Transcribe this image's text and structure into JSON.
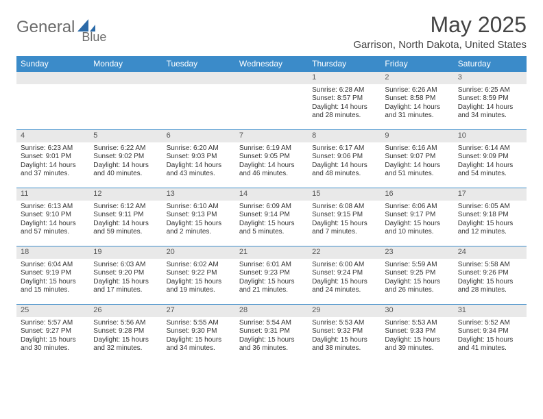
{
  "logo": {
    "part1": "General",
    "part2": "Blue"
  },
  "title": "May 2025",
  "location": "Garrison, North Dakota, United States",
  "colors": {
    "header_bg": "#3b8bc9",
    "header_text": "#ffffff",
    "daybar_bg": "#e9e9e9",
    "border": "#3b8bc9",
    "text": "#333333",
    "title_text": "#444444",
    "logo_gray": "#6b6b6b",
    "logo_blue": "#2b6aa8"
  },
  "weekdays": [
    "Sunday",
    "Monday",
    "Tuesday",
    "Wednesday",
    "Thursday",
    "Friday",
    "Saturday"
  ],
  "weeks": [
    [
      null,
      null,
      null,
      null,
      {
        "n": "1",
        "sr": "6:28 AM",
        "ss": "8:57 PM",
        "dh": 14,
        "dm": 28
      },
      {
        "n": "2",
        "sr": "6:26 AM",
        "ss": "8:58 PM",
        "dh": 14,
        "dm": 31
      },
      {
        "n": "3",
        "sr": "6:25 AM",
        "ss": "8:59 PM",
        "dh": 14,
        "dm": 34
      }
    ],
    [
      {
        "n": "4",
        "sr": "6:23 AM",
        "ss": "9:01 PM",
        "dh": 14,
        "dm": 37
      },
      {
        "n": "5",
        "sr": "6:22 AM",
        "ss": "9:02 PM",
        "dh": 14,
        "dm": 40
      },
      {
        "n": "6",
        "sr": "6:20 AM",
        "ss": "9:03 PM",
        "dh": 14,
        "dm": 43
      },
      {
        "n": "7",
        "sr": "6:19 AM",
        "ss": "9:05 PM",
        "dh": 14,
        "dm": 46
      },
      {
        "n": "8",
        "sr": "6:17 AM",
        "ss": "9:06 PM",
        "dh": 14,
        "dm": 48
      },
      {
        "n": "9",
        "sr": "6:16 AM",
        "ss": "9:07 PM",
        "dh": 14,
        "dm": 51
      },
      {
        "n": "10",
        "sr": "6:14 AM",
        "ss": "9:09 PM",
        "dh": 14,
        "dm": 54
      }
    ],
    [
      {
        "n": "11",
        "sr": "6:13 AM",
        "ss": "9:10 PM",
        "dh": 14,
        "dm": 57
      },
      {
        "n": "12",
        "sr": "6:12 AM",
        "ss": "9:11 PM",
        "dh": 14,
        "dm": 59
      },
      {
        "n": "13",
        "sr": "6:10 AM",
        "ss": "9:13 PM",
        "dh": 15,
        "dm": 2
      },
      {
        "n": "14",
        "sr": "6:09 AM",
        "ss": "9:14 PM",
        "dh": 15,
        "dm": 5
      },
      {
        "n": "15",
        "sr": "6:08 AM",
        "ss": "9:15 PM",
        "dh": 15,
        "dm": 7
      },
      {
        "n": "16",
        "sr": "6:06 AM",
        "ss": "9:17 PM",
        "dh": 15,
        "dm": 10
      },
      {
        "n": "17",
        "sr": "6:05 AM",
        "ss": "9:18 PM",
        "dh": 15,
        "dm": 12
      }
    ],
    [
      {
        "n": "18",
        "sr": "6:04 AM",
        "ss": "9:19 PM",
        "dh": 15,
        "dm": 15
      },
      {
        "n": "19",
        "sr": "6:03 AM",
        "ss": "9:20 PM",
        "dh": 15,
        "dm": 17
      },
      {
        "n": "20",
        "sr": "6:02 AM",
        "ss": "9:22 PM",
        "dh": 15,
        "dm": 19
      },
      {
        "n": "21",
        "sr": "6:01 AM",
        "ss": "9:23 PM",
        "dh": 15,
        "dm": 21
      },
      {
        "n": "22",
        "sr": "6:00 AM",
        "ss": "9:24 PM",
        "dh": 15,
        "dm": 24
      },
      {
        "n": "23",
        "sr": "5:59 AM",
        "ss": "9:25 PM",
        "dh": 15,
        "dm": 26
      },
      {
        "n": "24",
        "sr": "5:58 AM",
        "ss": "9:26 PM",
        "dh": 15,
        "dm": 28
      }
    ],
    [
      {
        "n": "25",
        "sr": "5:57 AM",
        "ss": "9:27 PM",
        "dh": 15,
        "dm": 30
      },
      {
        "n": "26",
        "sr": "5:56 AM",
        "ss": "9:28 PM",
        "dh": 15,
        "dm": 32
      },
      {
        "n": "27",
        "sr": "5:55 AM",
        "ss": "9:30 PM",
        "dh": 15,
        "dm": 34
      },
      {
        "n": "28",
        "sr": "5:54 AM",
        "ss": "9:31 PM",
        "dh": 15,
        "dm": 36
      },
      {
        "n": "29",
        "sr": "5:53 AM",
        "ss": "9:32 PM",
        "dh": 15,
        "dm": 38
      },
      {
        "n": "30",
        "sr": "5:53 AM",
        "ss": "9:33 PM",
        "dh": 15,
        "dm": 39
      },
      {
        "n": "31",
        "sr": "5:52 AM",
        "ss": "9:34 PM",
        "dh": 15,
        "dm": 41
      }
    ]
  ]
}
